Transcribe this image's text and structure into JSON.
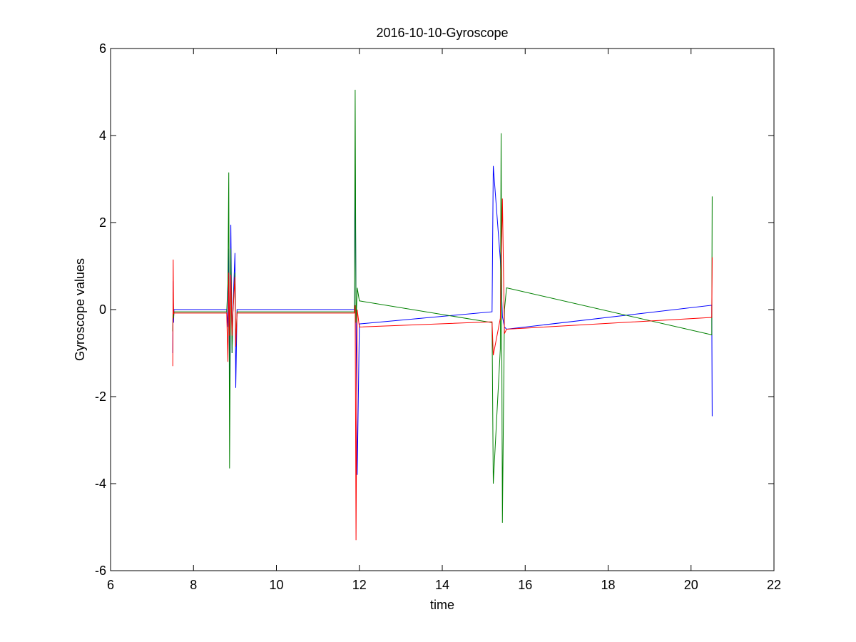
{
  "chart_data": {
    "type": "line",
    "title": "2016-10-10-Gyroscope",
    "xlabel": "time",
    "ylabel": "Gyroscope values",
    "xlim": [
      6,
      22
    ],
    "ylim": [
      -6,
      6
    ],
    "xticks": [
      6,
      8,
      10,
      12,
      14,
      16,
      18,
      20,
      22
    ],
    "yticks": [
      -6,
      -4,
      -2,
      0,
      2,
      4,
      6
    ],
    "grid": false,
    "legend": "none",
    "series": [
      {
        "color": "#0000ff",
        "x": [
          7.5,
          7.51,
          7.52,
          7.53,
          7.55,
          8.8,
          8.83,
          8.85,
          8.87,
          8.9,
          8.93,
          8.95,
          9.0,
          9.02,
          9.05,
          11.88,
          11.9,
          11.92,
          11.95,
          12.0,
          15.2,
          15.23,
          15.4,
          15.45,
          15.5,
          15.55,
          20.5,
          20.51
        ],
        "y": [
          -1.0,
          0.65,
          -0.3,
          0.0,
          0.0,
          0.0,
          -0.4,
          1.4,
          -1.9,
          1.95,
          -1.0,
          0.0,
          1.3,
          -1.8,
          0.0,
          0.0,
          3.7,
          0.0,
          -3.8,
          -0.33,
          -0.05,
          3.3,
          1.15,
          -0.15,
          -0.4,
          -0.45,
          0.1,
          -2.45
        ]
      },
      {
        "color": "#008000",
        "x": [
          7.5,
          7.51,
          7.52,
          7.53,
          7.55,
          8.8,
          8.83,
          8.85,
          8.87,
          8.9,
          8.93,
          8.95,
          9.0,
          9.02,
          9.05,
          11.88,
          11.9,
          11.92,
          11.95,
          12.0,
          15.2,
          15.23,
          15.4,
          15.42,
          15.45,
          15.5,
          15.55,
          20.5,
          20.51
        ],
        "y": [
          -0.5,
          0.4,
          -0.2,
          -0.05,
          -0.05,
          -0.05,
          0.6,
          3.15,
          -3.65,
          1.4,
          -1.0,
          -0.05,
          0.85,
          -0.85,
          -0.05,
          -0.05,
          5.05,
          -0.3,
          0.5,
          0.2,
          -0.3,
          -4.0,
          -0.9,
          4.05,
          -4.9,
          0.0,
          0.5,
          -0.58,
          2.6
        ]
      },
      {
        "color": "#ff0000",
        "x": [
          7.5,
          7.51,
          7.52,
          7.53,
          7.55,
          8.8,
          8.83,
          8.85,
          8.87,
          8.9,
          8.93,
          8.95,
          9.0,
          9.02,
          9.05,
          11.88,
          11.9,
          11.92,
          11.95,
          12.0,
          15.2,
          15.23,
          15.4,
          15.45,
          15.5,
          15.55,
          20.5,
          20.51
        ],
        "y": [
          -1.3,
          1.15,
          -0.1,
          -0.08,
          -0.08,
          -0.08,
          -1.2,
          0.85,
          -0.6,
          0.8,
          -0.6,
          -0.08,
          0.75,
          -0.85,
          -0.08,
          -0.08,
          0.1,
          -5.3,
          0.0,
          -0.4,
          -0.28,
          -1.05,
          -0.2,
          2.55,
          -0.55,
          -0.45,
          -0.18,
          1.2
        ]
      }
    ]
  }
}
